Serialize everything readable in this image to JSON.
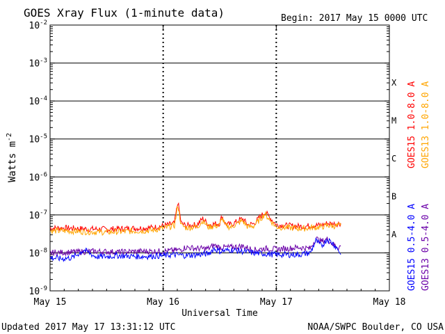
{
  "chart_data": {
    "type": "line",
    "title": "GOES Xray Flux (1-minute data)",
    "begin_label": "Begin:  2017 May 15 0000 UTC",
    "ylabel_base": "Watts m",
    "ylabel_exp": "-2",
    "xlabel": "Universal Time",
    "yscale": "log",
    "ylim": [
      1e-09,
      0.01
    ],
    "y_ticks": [
      {
        "base": "10",
        "exp": "-2",
        "value": 0.01
      },
      {
        "base": "10",
        "exp": "-3",
        "value": 0.001
      },
      {
        "base": "10",
        "exp": "-4",
        "value": 0.0001
      },
      {
        "base": "10",
        "exp": "-5",
        "value": 1e-05
      },
      {
        "base": "10",
        "exp": "-6",
        "value": 1e-06
      },
      {
        "base": "10",
        "exp": "-7",
        "value": 1e-07
      },
      {
        "base": "10",
        "exp": "-8",
        "value": 1e-08
      },
      {
        "base": "10",
        "exp": "-9",
        "value": 1e-09
      }
    ],
    "x_ticks": [
      "May 15",
      "May 16",
      "May 17",
      "May 18"
    ],
    "xlim_days": [
      0,
      3
    ],
    "flare_classes": [
      {
        "label": "X",
        "value": 0.0001
      },
      {
        "label": "M",
        "value": 1e-05
      },
      {
        "label": "C",
        "value": 1e-06
      },
      {
        "label": "B",
        "value": 1e-07
      },
      {
        "label": "A",
        "value": 1e-08
      }
    ],
    "grid": true,
    "legend_placement": "right",
    "series": [
      {
        "name": "GOES15 1.0-8.0 A",
        "color": "#ff0000",
        "days": [
          0,
          0.15,
          0.3,
          0.5,
          0.7,
          0.9,
          1.05,
          1.1,
          1.13,
          1.16,
          1.2,
          1.3,
          1.35,
          1.4,
          1.5,
          1.52,
          1.55,
          1.6,
          1.7,
          1.75,
          1.8,
          1.9,
          2.0,
          2.1,
          2.2,
          2.25,
          2.3,
          2.4,
          2.45,
          2.5,
          2.57
        ],
        "values": [
          4.5e-08,
          4.5e-08,
          4.3e-08,
          4.2e-08,
          4.4e-08,
          4.6e-08,
          5.5e-08,
          6e-08,
          2.2e-07,
          6e-08,
          5.2e-08,
          5.5e-08,
          8e-08,
          5.5e-08,
          6e-08,
          9.5e-08,
          5.8e-08,
          5.5e-08,
          8e-08,
          5.5e-08,
          5.8e-08,
          1.2e-07,
          5.5e-08,
          5.2e-08,
          5e-08,
          5e-08,
          5.2e-08,
          5.4e-08,
          6e-08,
          5.8e-08,
          6e-08
        ]
      },
      {
        "name": "GOES13 1.0-8.0 A",
        "color": "#ffa500",
        "days": [
          0,
          0.15,
          0.3,
          0.5,
          0.7,
          0.9,
          1.05,
          1.1,
          1.13,
          1.16,
          1.2,
          1.3,
          1.35,
          1.4,
          1.5,
          1.52,
          1.55,
          1.6,
          1.7,
          1.75,
          1.8,
          1.9,
          2.0,
          2.1,
          2.2,
          2.25,
          2.3,
          2.4,
          2.45,
          2.5,
          2.57
        ],
        "values": [
          3.8e-08,
          3.8e-08,
          3.6e-08,
          3.5e-08,
          3.7e-08,
          3.9e-08,
          4.8e-08,
          5.3e-08,
          1.8e-07,
          5.3e-08,
          4.6e-08,
          4.8e-08,
          7e-08,
          4.8e-08,
          5.3e-08,
          8.5e-08,
          5.1e-08,
          4.8e-08,
          7e-08,
          4.8e-08,
          5.1e-08,
          1.05e-07,
          4.8e-08,
          4.6e-08,
          4.4e-08,
          4.4e-08,
          4.6e-08,
          4.8e-08,
          5.3e-08,
          5.1e-08,
          5.3e-08
        ]
      },
      {
        "name": "GOES13 0.5-4.0 A",
        "color": "#6a00a8",
        "days": [
          0,
          0.2,
          0.4,
          0.6,
          0.8,
          1.0,
          1.15,
          1.2,
          1.3,
          1.4,
          1.45,
          1.5,
          1.6,
          1.7,
          1.8,
          1.9,
          2.0,
          2.1,
          2.2,
          2.3,
          2.35,
          2.4,
          2.45,
          2.5,
          2.55,
          2.57
        ],
        "values": [
          1e-08,
          1.05e-08,
          1.1e-08,
          1.05e-08,
          1.1e-08,
          1.1e-08,
          1.2e-08,
          1.4e-08,
          1.3e-08,
          1.3e-08,
          1.6e-08,
          1.4e-08,
          1.4e-08,
          1.5e-08,
          1.2e-08,
          1.3e-08,
          1.25e-08,
          1.3e-08,
          1.4e-08,
          1.3e-08,
          2.4e-08,
          2e-08,
          2.3e-08,
          1.7e-08,
          1.4e-08,
          1.5e-08
        ]
      },
      {
        "name": "GOES15 0.5-4.0 A",
        "color": "#0000ff",
        "days": [
          0,
          0.1,
          0.2,
          0.3,
          0.4,
          0.5,
          0.6,
          0.8,
          1.0,
          1.1,
          1.2,
          1.3,
          1.4,
          1.45,
          1.5,
          1.6,
          1.7,
          1.8,
          1.9,
          2.0,
          2.1,
          2.2,
          2.3,
          2.35,
          2.4,
          2.45,
          2.5,
          2.55,
          2.57
        ],
        "values": [
          7.5e-09,
          7e-09,
          7.5e-09,
          1.2e-08,
          8e-09,
          8e-09,
          8.5e-09,
          8e-09,
          8.5e-09,
          9e-09,
          8.5e-09,
          9e-09,
          9.5e-09,
          1.3e-08,
          1.1e-08,
          1.2e-08,
          1.1e-08,
          1e-08,
          9.5e-09,
          9e-09,
          9e-09,
          9e-09,
          1e-08,
          2.1e-08,
          1.5e-08,
          2.3e-08,
          1.8e-08,
          1.2e-08,
          9e-09
        ]
      }
    ]
  },
  "footer": {
    "updated": "Updated 2017 May 17 13:31:12 UTC",
    "credit": "NOAA/SWPC Boulder, CO USA"
  }
}
